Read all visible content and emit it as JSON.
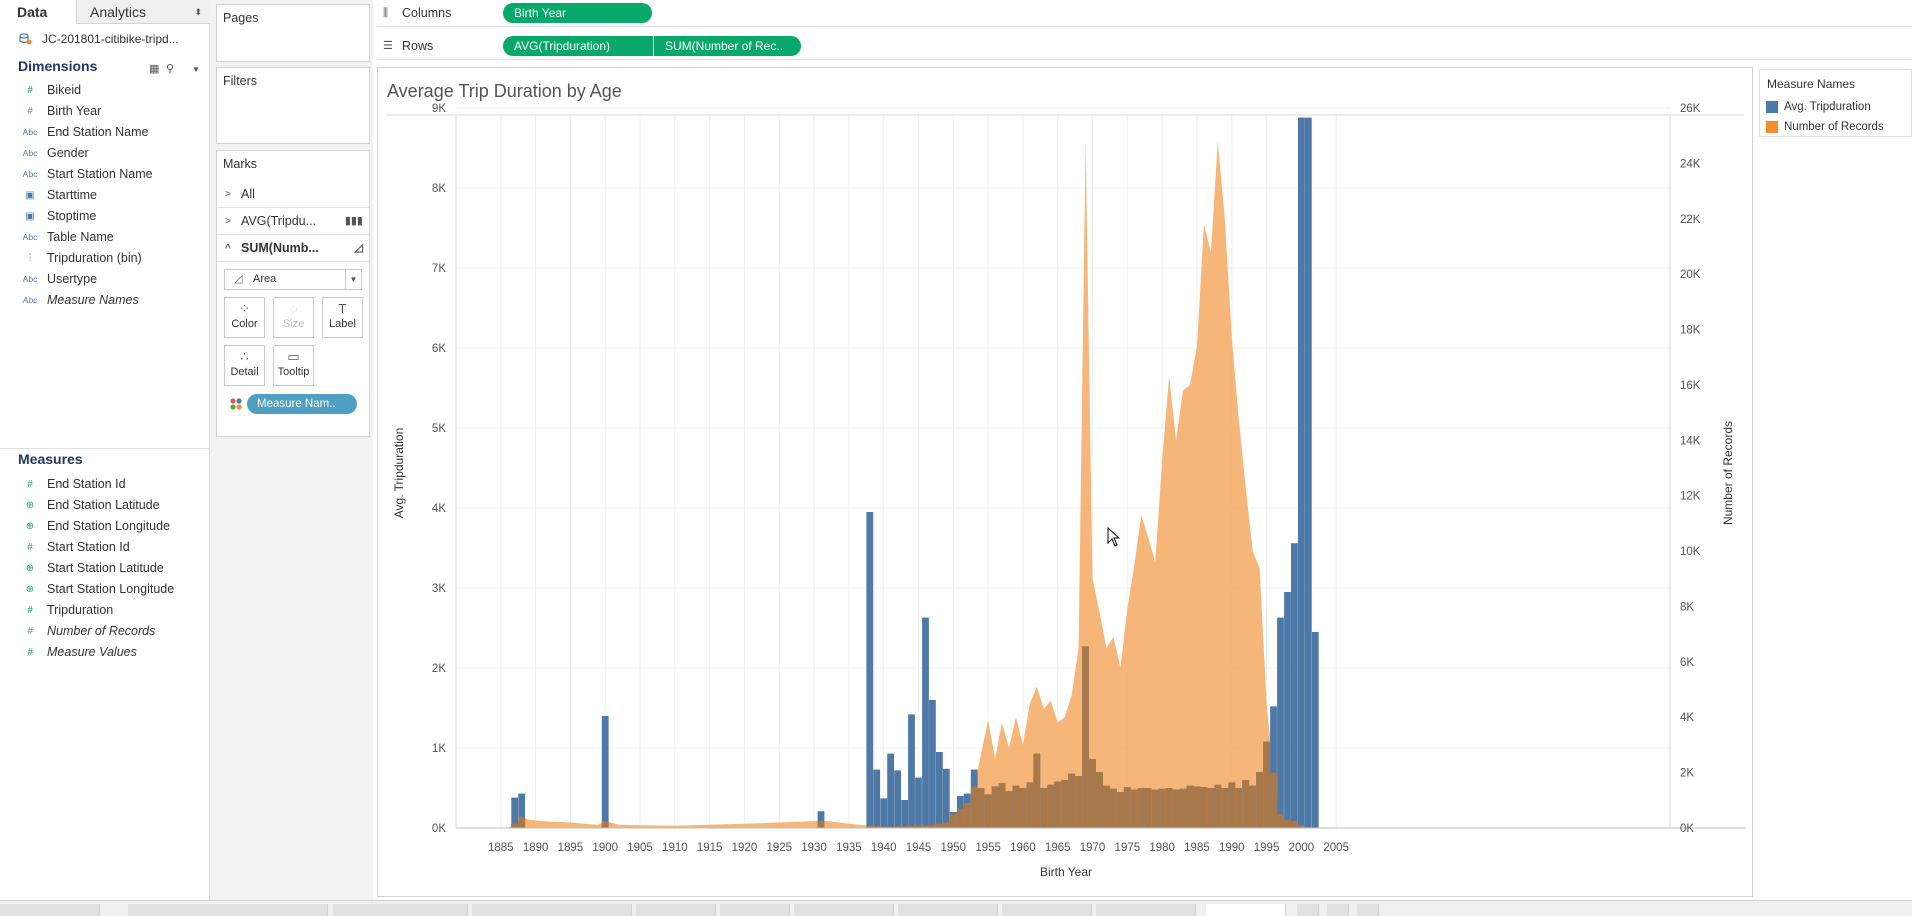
{
  "left_pane": {
    "tabs": [
      {
        "label": "Data"
      },
      {
        "label": "Analytics"
      }
    ],
    "analytics_caret": "⬍",
    "datasource": "JC-201801-citibike-tripd...",
    "dimensions_header": "Dimensions",
    "dimensions": [
      {
        "label": "Bikeid",
        "type": "#",
        "italic": false
      },
      {
        "label": "Birth Year",
        "type": "#",
        "italic": false
      },
      {
        "label": "End Station Name",
        "type": "Abc",
        "italic": false
      },
      {
        "label": "Gender",
        "type": "Abc",
        "italic": false
      },
      {
        "label": "Start Station Name",
        "type": "Abc",
        "italic": false
      },
      {
        "label": "Starttime",
        "type": "date",
        "italic": false
      },
      {
        "label": "Stoptime",
        "type": "date",
        "italic": false
      },
      {
        "label": "Table Name",
        "type": "Abc",
        "italic": false
      },
      {
        "label": "Tripduration (bin)",
        "type": "bin",
        "italic": false
      },
      {
        "label": "Usertype",
        "type": "Abc",
        "italic": false
      },
      {
        "label": "Measure Names",
        "type": "Abc",
        "italic": true
      }
    ],
    "measures_header": "Measures",
    "measures": [
      {
        "label": "End Station Id",
        "type": "#",
        "italic": false
      },
      {
        "label": "End Station Latitude",
        "type": "geo",
        "italic": false
      },
      {
        "label": "End Station Longitude",
        "type": "geo",
        "italic": false
      },
      {
        "label": "Start Station Id",
        "type": "#",
        "italic": false
      },
      {
        "label": "Start Station Latitude",
        "type": "geo",
        "italic": false
      },
      {
        "label": "Start Station Longitude",
        "type": "geo",
        "italic": false
      },
      {
        "label": "Tripduration",
        "type": "#",
        "italic": false
      },
      {
        "label": "Number of Records",
        "type": "#",
        "italic": true
      },
      {
        "label": "Measure Values",
        "type": "#",
        "italic": true
      }
    ]
  },
  "shelves": {
    "pages_label": "Pages",
    "filters_label": "Filters",
    "columns_label": "Columns",
    "rows_label": "Rows",
    "columns_pills": [
      "Birth Year"
    ],
    "rows_pills": [
      "AVG(Tripduration)",
      "SUM(Number of Rec.."
    ]
  },
  "marks": {
    "title": "Marks",
    "rows": [
      {
        "label": "All",
        "icon": ""
      },
      {
        "label": "AVG(Tripdu...",
        "icon": "bar"
      },
      {
        "label": "SUM(Numb...",
        "icon": "area"
      }
    ],
    "mark_type": "Area",
    "buttons": [
      "Color",
      "Size",
      "Label",
      "Detail",
      "Tooltip"
    ],
    "color_pill": "Measure Nam.."
  },
  "sheet": {
    "title": "Average Trip Duration by Age"
  },
  "legend": {
    "title": "Measure Names",
    "items": [
      {
        "label": "Avg. Tripduration",
        "color": "#4e79a7"
      },
      {
        "label": "Number of Records",
        "color": "#f28e2b"
      }
    ]
  },
  "colors": {
    "avg_bar": "#4e79a7",
    "records_area": "#f5a65b",
    "overlap": "#a9784a",
    "pill_green": "#08a86b",
    "pill_blue": "#4e9fc2"
  },
  "chart_data": {
    "type": "bar",
    "title": "Average Trip Duration by Age",
    "xlabel": "Birth Year",
    "ylabel": "Avg. Tripduration",
    "y2label": "Number of Records",
    "xlim": [
      1880,
      2010
    ],
    "x_ticks": [
      "1885",
      "1890",
      "1895",
      "1900",
      "1905",
      "1910",
      "1915",
      "1920",
      "1925",
      "1930",
      "1935",
      "1940",
      "1945",
      "1950",
      "1955",
      "1960",
      "1965",
      "1970",
      "1975",
      "1980",
      "1985",
      "1990",
      "1995",
      "2000",
      "2005"
    ],
    "ylim": [
      0,
      9000
    ],
    "y_ticks": [
      "0K",
      "1K",
      "2K",
      "3K",
      "4K",
      "5K",
      "6K",
      "7K",
      "8K",
      "9K"
    ],
    "y2lim": [
      0,
      26000
    ],
    "y2_ticks": [
      "0K",
      "2K",
      "4K",
      "6K",
      "8K",
      "10K",
      "12K",
      "14K",
      "16K",
      "18K",
      "20K",
      "22K",
      "24K",
      "26K"
    ],
    "grid": true,
    "legend": "right",
    "series": [
      {
        "name": "Avg. Tripduration",
        "mark": "bar",
        "axis": "left",
        "x": [
          1887,
          1888,
          1900,
          1931,
          1938,
          1939,
          1940,
          1941,
          1942,
          1943,
          1944,
          1945,
          1946,
          1947,
          1948,
          1949,
          1950,
          1951,
          1952,
          1953,
          1954,
          1955,
          1956,
          1957,
          1958,
          1959,
          1960,
          1961,
          1962,
          1963,
          1964,
          1965,
          1966,
          1967,
          1968,
          1969,
          1970,
          1971,
          1972,
          1973,
          1974,
          1975,
          1976,
          1977,
          1978,
          1979,
          1980,
          1981,
          1982,
          1983,
          1984,
          1985,
          1986,
          1987,
          1988,
          1989,
          1990,
          1991,
          1992,
          1993,
          1994,
          1995,
          1996,
          1997,
          1998,
          1999,
          2000,
          2001,
          2002
        ],
        "values": [
          380,
          430,
          1400,
          210,
          3950,
          730,
          370,
          930,
          720,
          350,
          1420,
          630,
          2630,
          1600,
          950,
          740,
          200,
          400,
          430,
          730,
          500,
          420,
          520,
          560,
          460,
          530,
          500,
          570,
          930,
          500,
          540,
          580,
          600,
          680,
          650,
          2270,
          860,
          700,
          530,
          490,
          450,
          510,
          480,
          500,
          500,
          480,
          490,
          500,
          480,
          490,
          530,
          520,
          510,
          500,
          540,
          500,
          570,
          500,
          600,
          530,
          700,
          1080,
          1520,
          2630,
          2950,
          3560,
          8880,
          8880,
          2450
        ]
      },
      {
        "name": "Number of Records",
        "mark": "area",
        "axis": "right",
        "x": [
          1886,
          1887,
          1888,
          1889,
          1890,
          1891,
          1893,
          1895,
          1897,
          1899,
          1900,
          1902,
          1905,
          1910,
          1915,
          1920,
          1925,
          1930,
          1932,
          1935,
          1938,
          1940,
          1942,
          1944,
          1946,
          1948,
          1949,
          1950,
          1951,
          1952,
          1953,
          1954,
          1955,
          1956,
          1957,
          1958,
          1959,
          1960,
          1961,
          1962,
          1963,
          1964,
          1965,
          1966,
          1967,
          1968,
          1969,
          1970,
          1971,
          1972,
          1973,
          1974,
          1975,
          1976,
          1977,
          1978,
          1979,
          1980,
          1981,
          1982,
          1983,
          1984,
          1985,
          1986,
          1987,
          1988,
          1989,
          1990,
          1991,
          1992,
          1993,
          1994,
          1995,
          1996,
          1997,
          1998,
          1999,
          2000,
          2001,
          2002
        ],
        "values": [
          0,
          150,
          400,
          300,
          280,
          250,
          220,
          200,
          150,
          120,
          250,
          120,
          100,
          80,
          120,
          150,
          200,
          250,
          250,
          150,
          80,
          50,
          60,
          80,
          100,
          150,
          200,
          500,
          700,
          900,
          1500,
          2700,
          3900,
          2500,
          3800,
          2900,
          4000,
          3000,
          4500,
          5100,
          4300,
          4600,
          3800,
          4000,
          4800,
          6500,
          24800,
          9000,
          7800,
          6500,
          6900,
          5800,
          7900,
          9500,
          11300,
          10500,
          9600,
          13300,
          16300,
          14000,
          15800,
          16000,
          17400,
          21800,
          20800,
          24800,
          22000,
          17700,
          14800,
          12300,
          10000,
          9400,
          4500,
          2000,
          500,
          300,
          250,
          100,
          0,
          0
        ]
      }
    ]
  }
}
